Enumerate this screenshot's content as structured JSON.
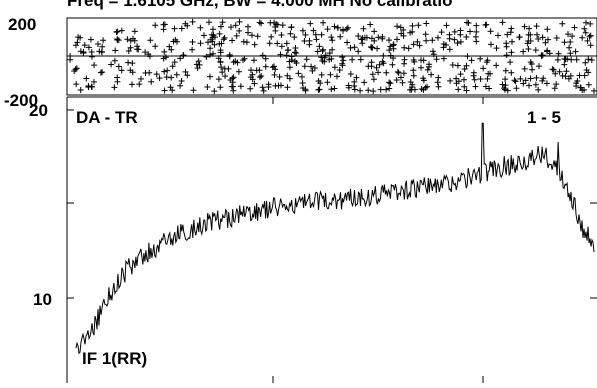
{
  "header": {
    "title": "Freq = 1.6105 GHz, BW = 4.000 MH   No calibratio"
  },
  "chart_data": [
    {
      "type": "scatter",
      "title": "",
      "ylim": [
        -200,
        200
      ],
      "y_ticks": [
        "200",
        "-200"
      ],
      "marker": "+",
      "n_points": 600,
      "series": [
        {
          "values_description": "uniform phase scatter between -180 and 180 across ~600 channels"
        }
      ]
    },
    {
      "type": "line",
      "title": "",
      "ylim": [
        6.5,
        21.5
      ],
      "y_ticks": [
        "20",
        "10"
      ],
      "labels": {
        "top_left": "DA - TR",
        "top_right": "1 - 5",
        "bottom_left": "IF 1(RR)"
      },
      "n_points": 520,
      "series": [
        {
          "name": "",
          "envelope_x": [
            0,
            0.03,
            0.06,
            0.1,
            0.15,
            0.2,
            0.25,
            0.3,
            0.35,
            0.4,
            0.5,
            0.6,
            0.7,
            0.75,
            0.8,
            0.85,
            0.9,
            0.93,
            0.96,
            0.98,
            1.0
          ],
          "envelope_y": [
            7.2,
            8.2,
            10.0,
            11.6,
            12.6,
            13.4,
            14.0,
            14.3,
            14.6,
            14.9,
            15.2,
            15.6,
            16.0,
            16.3,
            16.8,
            17.2,
            17.6,
            17.0,
            15.2,
            13.6,
            13.0
          ],
          "noise_amplitude": 0.55,
          "spikes": [
            {
              "frac": 0.785,
              "y": 19.3
            },
            {
              "frac": 0.93,
              "y": 18.3
            }
          ]
        }
      ]
    }
  ]
}
